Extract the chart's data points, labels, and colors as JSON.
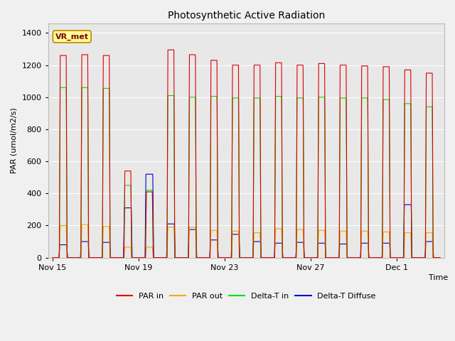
{
  "title": "Photosynthetic Active Radiation",
  "ylabel": "PAR (umol/m2/s)",
  "xlabel": "Time",
  "annotation": "VR_met",
  "ylim": [
    0,
    1460
  ],
  "yticks": [
    0,
    200,
    400,
    600,
    800,
    1000,
    1200,
    1400
  ],
  "xtick_labels": [
    "Nov 15",
    "Nov 19",
    "Nov 23",
    "Nov 27",
    "Dec 1"
  ],
  "xtick_positions": [
    0,
    4,
    8,
    12,
    16
  ],
  "n_days": 18,
  "colors": {
    "PAR_in": "#dd0000",
    "PAR_out": "#ffa500",
    "Delta_T_in": "#00dd00",
    "Delta_T_diffuse": "#0000cc"
  },
  "legend_labels": [
    "PAR in",
    "PAR out",
    "Delta-T in",
    "Delta-T Diffuse"
  ],
  "background_color": "#f0f0f0",
  "plot_bg_color": "#e8e8e8",
  "grid_color": "#ffffff",
  "annotation_bg": "#ffff99",
  "annotation_border": "#bb8800",
  "annotation_text_color": "#880000",
  "par_in_peaks": [
    1260,
    1265,
    1260,
    540,
    410,
    1295,
    1265,
    1230,
    1200,
    1200,
    1215,
    1200,
    1210,
    1200,
    1195,
    1190,
    1170,
    1150
  ],
  "par_out_peaks": [
    200,
    205,
    195,
    65,
    65,
    190,
    190,
    170,
    165,
    155,
    180,
    175,
    170,
    165,
    165,
    160,
    155,
    155
  ],
  "delta_t_in_peaks": [
    1060,
    1060,
    1055,
    450,
    420,
    1010,
    1000,
    1005,
    995,
    995,
    1005,
    995,
    1000,
    995,
    995,
    985,
    960,
    940
  ],
  "delta_t_diff_peaks": [
    80,
    100,
    95,
    310,
    520,
    210,
    175,
    110,
    145,
    100,
    90,
    95,
    90,
    85,
    90,
    90,
    330,
    100
  ],
  "pulse_on": 0.35,
  "pulse_off": 0.0,
  "day_start": 0.25,
  "day_end": 0.75
}
